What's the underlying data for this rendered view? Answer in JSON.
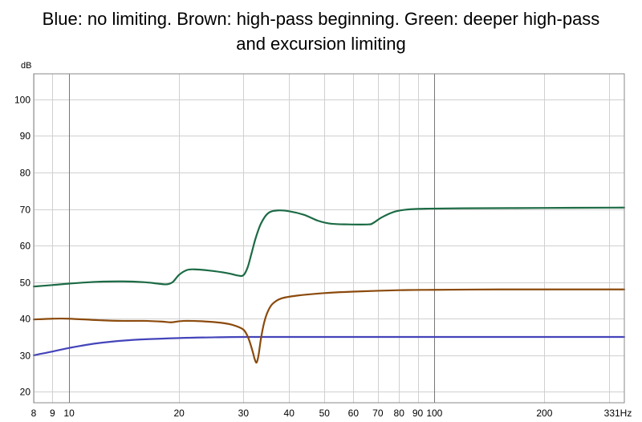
{
  "chart_data": {
    "type": "line",
    "title_lines": [
      "Blue: no limiting. Brown: high-pass beginning. Green: deeper high-pass",
      "and excursion limiting"
    ],
    "ylabel": "dB",
    "xunit": "Hz",
    "xscale": "log",
    "xlim": [
      8,
      331
    ],
    "ylim": [
      17,
      107
    ],
    "grid": true,
    "y_ticks": [
      20,
      30,
      40,
      50,
      60,
      70,
      80,
      90,
      100
    ],
    "x_ticks": [
      {
        "value": 8,
        "label": "8"
      },
      {
        "value": 9,
        "label": "9"
      },
      {
        "value": 10,
        "label": "10"
      },
      {
        "value": 20,
        "label": "20"
      },
      {
        "value": 30,
        "label": "30"
      },
      {
        "value": 40,
        "label": "40"
      },
      {
        "value": 50,
        "label": "50"
      },
      {
        "value": 60,
        "label": "60"
      },
      {
        "value": 70,
        "label": "70"
      },
      {
        "value": 80,
        "label": "80"
      },
      {
        "value": 90,
        "label": "90"
      },
      {
        "value": 100,
        "label": "100"
      },
      {
        "value": 200,
        "label": "200"
      },
      {
        "value": 331,
        "label": "331"
      }
    ],
    "x_grid": [
      8,
      9,
      10,
      20,
      30,
      40,
      50,
      60,
      70,
      80,
      90,
      100,
      200,
      300
    ],
    "x_major_grid": [
      10,
      100
    ],
    "series": [
      {
        "color": "#4444bb",
        "points": [
          [
            8,
            30
          ],
          [
            9,
            31
          ],
          [
            10,
            32
          ],
          [
            12,
            33.3
          ],
          [
            15,
            34.2
          ],
          [
            20,
            34.7
          ],
          [
            25,
            34.9
          ],
          [
            30,
            35
          ],
          [
            40,
            35
          ],
          [
            60,
            35
          ],
          [
            100,
            35
          ],
          [
            200,
            35
          ],
          [
            331,
            35
          ]
        ]
      },
      {
        "color": "#8b4a0c",
        "points": [
          [
            8,
            39.8
          ],
          [
            9,
            40
          ],
          [
            10,
            40
          ],
          [
            12,
            39.6
          ],
          [
            14,
            39.4
          ],
          [
            16,
            39.4
          ],
          [
            18,
            39.2
          ],
          [
            19,
            39
          ],
          [
            20,
            39.3
          ],
          [
            21,
            39.4
          ],
          [
            23,
            39.3
          ],
          [
            26,
            38.9
          ],
          [
            28,
            38.3
          ],
          [
            30,
            37
          ],
          [
            31,
            34.5
          ],
          [
            31.8,
            31
          ],
          [
            32.2,
            29
          ],
          [
            32.6,
            28
          ],
          [
            33.0,
            30
          ],
          [
            33.5,
            34.5
          ],
          [
            34.2,
            39
          ],
          [
            35,
            42
          ],
          [
            36,
            44
          ],
          [
            38,
            45.5
          ],
          [
            42,
            46.3
          ],
          [
            50,
            47
          ],
          [
            60,
            47.4
          ],
          [
            80,
            47.8
          ],
          [
            100,
            47.9
          ],
          [
            150,
            48
          ],
          [
            200,
            48
          ],
          [
            331,
            48
          ]
        ]
      },
      {
        "color": "#1c6b45",
        "points": [
          [
            8,
            48.8
          ],
          [
            9,
            49.2
          ],
          [
            10,
            49.6
          ],
          [
            12,
            50.1
          ],
          [
            14,
            50.2
          ],
          [
            16,
            50
          ],
          [
            17.5,
            49.6
          ],
          [
            18.5,
            49.4
          ],
          [
            19.2,
            50
          ],
          [
            20,
            52
          ],
          [
            21,
            53.3
          ],
          [
            22,
            53.5
          ],
          [
            24,
            53.2
          ],
          [
            27,
            52.5
          ],
          [
            29,
            51.8
          ],
          [
            30,
            51.9
          ],
          [
            30.8,
            54
          ],
          [
            31.6,
            58
          ],
          [
            32.4,
            62
          ],
          [
            33.5,
            66
          ],
          [
            35,
            68.8
          ],
          [
            37,
            69.6
          ],
          [
            40,
            69.4
          ],
          [
            44,
            68.4
          ],
          [
            48,
            66.8
          ],
          [
            52,
            66
          ],
          [
            58,
            65.8
          ],
          [
            66,
            65.8
          ],
          [
            68,
            66.2
          ],
          [
            72,
            67.8
          ],
          [
            78,
            69.3
          ],
          [
            85,
            69.9
          ],
          [
            95,
            70.1
          ],
          [
            120,
            70.2
          ],
          [
            200,
            70.3
          ],
          [
            331,
            70.4
          ]
        ]
      }
    ]
  }
}
